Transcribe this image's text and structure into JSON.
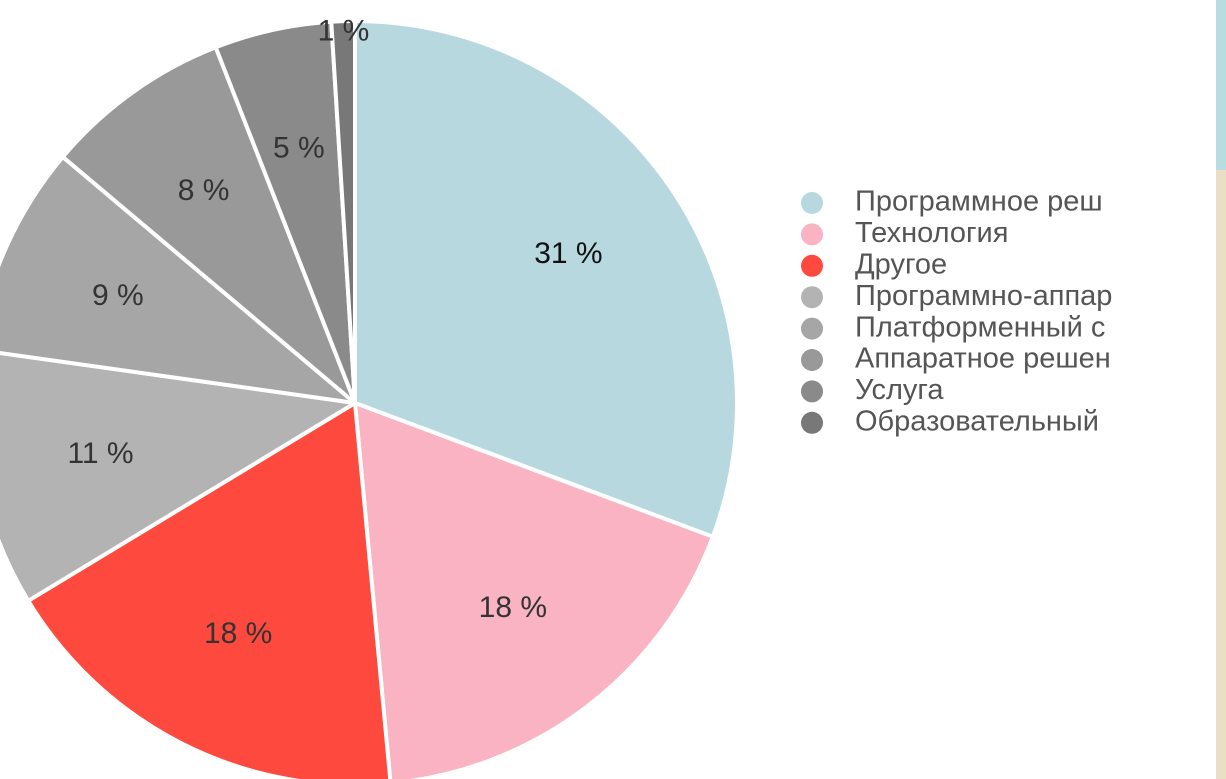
{
  "chart_data": {
    "type": "pie",
    "categories": [
      "Программное реш",
      "Технология",
      "Другое",
      "Программно-аппар",
      "Платформенный с",
      "Аппаратное решен",
      "Услуга",
      "Образовательный"
    ],
    "values": [
      31,
      18,
      18,
      11,
      9,
      8,
      5,
      1
    ],
    "value_labels": [
      "31 %",
      "18 %",
      "18 %",
      "11 %",
      "9 %",
      "8 %",
      "5 %",
      "1 %"
    ],
    "colors": [
      "#b8d8e0",
      "#f9b3c2",
      "#fe4a3e",
      "#b3b3b3",
      "#a6a6a6",
      "#999999",
      "#8a8a8a",
      "#787878"
    ],
    "legend": "right"
  }
}
